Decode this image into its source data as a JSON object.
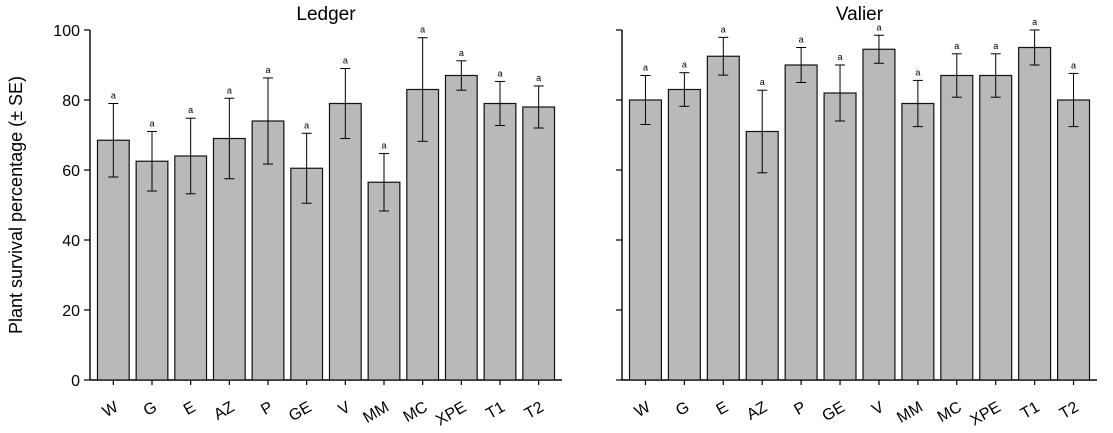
{
  "chart_data": [
    {
      "type": "bar",
      "title": "Ledger",
      "ylabel": "Plant survival percentage (± SE)",
      "ylim": [
        0,
        100
      ],
      "yticks": [
        0,
        20,
        40,
        60,
        80,
        100
      ],
      "categories": [
        "W",
        "G",
        "E",
        "AZ",
        "P",
        "GE",
        "V",
        "MM",
        "MC",
        "XPE",
        "T1",
        "T2"
      ],
      "values": [
        68.5,
        62.5,
        64,
        69,
        74,
        60.5,
        79,
        56.5,
        83,
        87,
        79,
        78
      ],
      "se": [
        10.5,
        8.5,
        10.8,
        11.5,
        12.3,
        10,
        10,
        8.2,
        14.8,
        4.2,
        6.3,
        6
      ],
      "significance": [
        "a",
        "a",
        "a",
        "a",
        "a",
        "a",
        "a",
        "a",
        "a",
        "a",
        "a",
        "a"
      ]
    },
    {
      "type": "bar",
      "title": "Valier",
      "ylim": [
        0,
        100
      ],
      "categories": [
        "W",
        "G",
        "E",
        "AZ",
        "P",
        "GE",
        "V",
        "MM",
        "MC",
        "XPE",
        "T1",
        "T2"
      ],
      "values": [
        80,
        83,
        92.5,
        71,
        90,
        82,
        94.5,
        79,
        87,
        87,
        95,
        80
      ],
      "se": [
        7,
        4.8,
        5.4,
        11.8,
        5,
        8,
        4,
        6.6,
        6.2,
        6.2,
        5,
        7.6
      ],
      "significance": [
        "a",
        "a",
        "a",
        "a",
        "a",
        "a",
        "a",
        "a",
        "a",
        "a",
        "a",
        "a"
      ]
    }
  ]
}
